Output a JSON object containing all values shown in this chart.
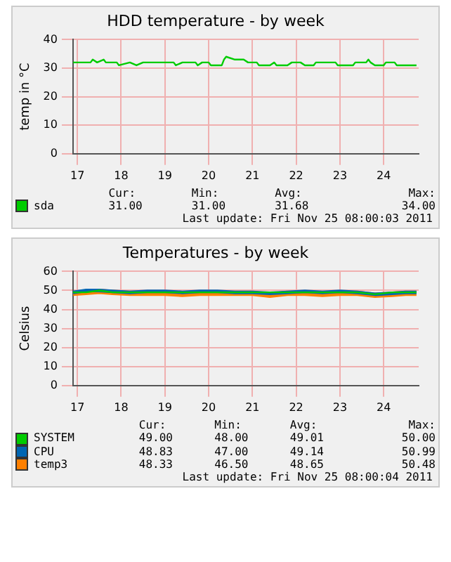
{
  "chart_data": [
    {
      "type": "line",
      "title": "HDD temperature - by week",
      "ylabel": "temp in °C",
      "xlim": [
        16.9,
        24.8
      ],
      "xticks": [
        17,
        18,
        19,
        20,
        21,
        22,
        23,
        24
      ],
      "ylim": [
        0,
        40
      ],
      "yticks": [
        0,
        10,
        20,
        30,
        40
      ],
      "grid": true,
      "legend": "bottom",
      "series": [
        {
          "name": "sda",
          "color": "#00cc00",
          "x": [
            16.9,
            17.3,
            17.35,
            17.45,
            17.6,
            17.65,
            17.9,
            17.95,
            18.2,
            18.35,
            18.5,
            19.2,
            19.25,
            19.4,
            19.7,
            19.75,
            19.85,
            20.0,
            20.05,
            20.3,
            20.35,
            20.4,
            20.6,
            20.8,
            20.9,
            21.1,
            21.15,
            21.4,
            21.5,
            21.55,
            21.8,
            21.9,
            22.1,
            22.2,
            22.4,
            22.45,
            22.9,
            22.95,
            23.3,
            23.35,
            23.6,
            23.65,
            23.7,
            23.8,
            24.0,
            24.05,
            24.25,
            24.3,
            24.75
          ],
          "values": [
            32,
            32,
            33,
            32,
            33,
            32,
            32,
            31,
            32,
            31,
            32,
            32,
            31,
            32,
            32,
            31,
            32,
            32,
            31,
            31,
            33,
            34,
            33,
            33,
            32,
            32,
            31,
            31,
            32,
            31,
            31,
            32,
            32,
            31,
            31,
            32,
            32,
            31,
            31,
            32,
            32,
            33,
            32,
            31,
            31,
            32,
            32,
            31,
            31
          ]
        }
      ],
      "annotations": [
        "Cur:",
        "Min:",
        "Avg:",
        "Max:",
        "31.00",
        "31.00",
        "31.68",
        "34.00",
        "Last update: Fri Nov 25 08:00:03 2011"
      ]
    },
    {
      "type": "line",
      "title": "Temperatures - by week",
      "ylabel": "Celsius",
      "xlim": [
        16.9,
        24.8
      ],
      "xticks": [
        17,
        18,
        19,
        20,
        21,
        22,
        23,
        24
      ],
      "ylim": [
        0,
        60
      ],
      "yticks": [
        0,
        10,
        20,
        30,
        40,
        50,
        60
      ],
      "grid": true,
      "legend": "bottom",
      "series": [
        {
          "name": "SYSTEM",
          "color": "#00cc00",
          "x": [
            16.9,
            17.2,
            17.5,
            17.8,
            18.2,
            18.6,
            19.0,
            19.4,
            19.8,
            20.2,
            20.6,
            21.0,
            21.4,
            21.8,
            22.2,
            22.6,
            23.0,
            23.4,
            23.8,
            24.2,
            24.5,
            24.75
          ],
          "values": [
            49,
            49,
            50,
            49,
            49,
            49,
            49,
            49,
            49,
            49,
            49,
            49,
            49,
            49,
            49,
            49,
            49,
            49,
            48,
            49,
            49,
            49
          ]
        },
        {
          "name": "CPU",
          "color": "#0066b3",
          "x": [
            16.9,
            17.2,
            17.5,
            17.8,
            18.2,
            18.6,
            19.0,
            19.4,
            19.8,
            20.2,
            20.6,
            21.0,
            21.4,
            21.8,
            22.2,
            22.6,
            23.0,
            23.4,
            23.8,
            24.2,
            24.5,
            24.75
          ],
          "values": [
            49,
            50,
            50,
            49.5,
            49,
            49.5,
            49.5,
            49,
            49.5,
            49.5,
            49,
            49,
            48.5,
            49,
            49.5,
            49,
            49.5,
            49,
            48,
            48.5,
            49,
            49
          ]
        },
        {
          "name": "temp3",
          "color": "#ff8000",
          "x": [
            16.9,
            17.2,
            17.5,
            17.8,
            18.2,
            18.6,
            19.0,
            19.4,
            19.8,
            20.2,
            20.6,
            21.0,
            21.4,
            21.8,
            22.2,
            22.6,
            23.0,
            23.4,
            23.8,
            24.2,
            24.5,
            24.75
          ],
          "values": [
            48.5,
            49,
            49.5,
            49,
            48.5,
            48.5,
            48.5,
            48,
            48.5,
            48.5,
            48.5,
            48.5,
            47.5,
            48.5,
            48.5,
            48,
            48.5,
            48.5,
            47.5,
            48,
            48.5,
            48.5
          ]
        }
      ],
      "annotations": [
        "Cur:",
        "Min:",
        "Avg:",
        "Max:",
        "49.00",
        "48.00",
        "49.01",
        "50.00",
        "48.83",
        "47.00",
        "49.14",
        "50.99",
        "48.33",
        "46.50",
        "48.65",
        "50.48",
        "Last update: Fri Nov 25 08:00:04 2011"
      ]
    }
  ]
}
